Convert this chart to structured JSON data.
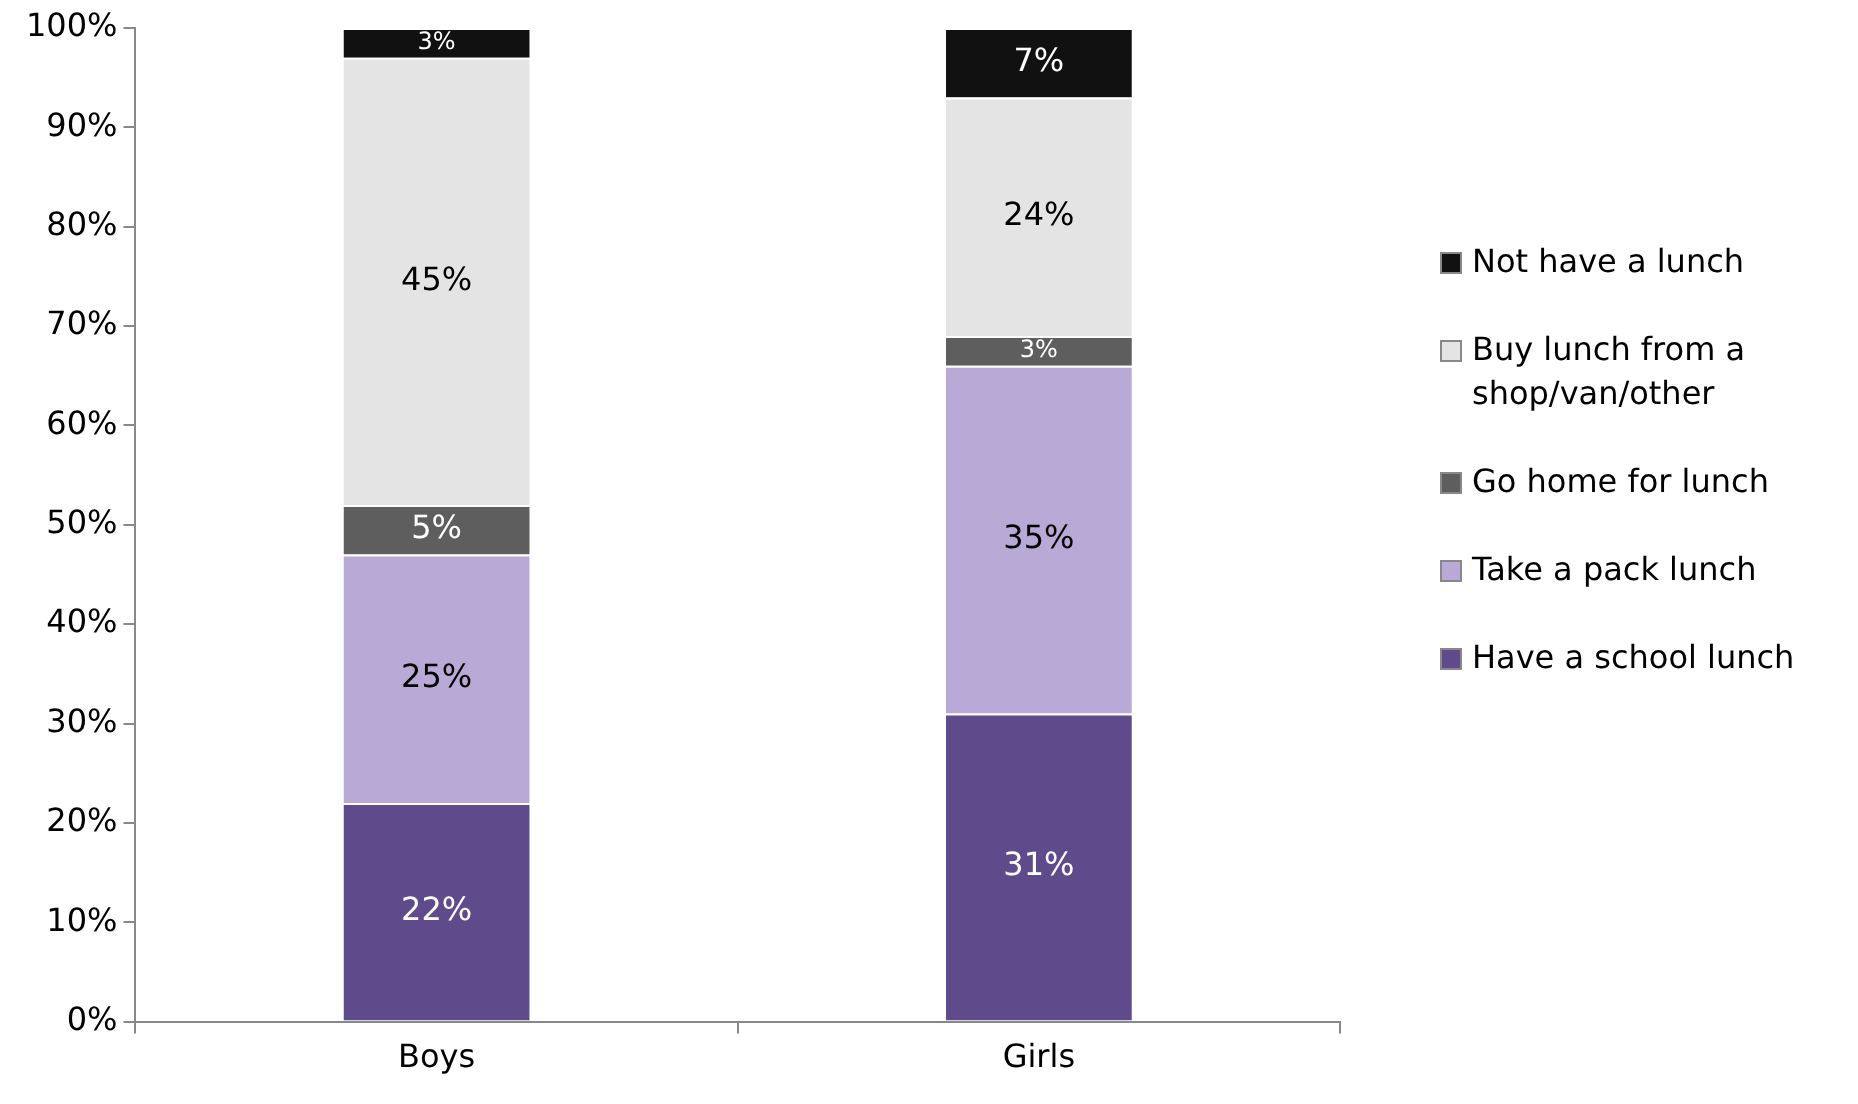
{
  "chart_data": {
    "type": "bar",
    "stacked": true,
    "categories": [
      "Boys",
      "Girls"
    ],
    "series": [
      {
        "name": "Have a school lunch",
        "color": "#5f4b8b",
        "values": [
          22,
          31
        ],
        "value_labels": [
          "22%",
          "31%"
        ]
      },
      {
        "name": "Take a pack lunch",
        "color": "#b9a9d6",
        "values": [
          25,
          35
        ],
        "value_labels": [
          "25%",
          "35%"
        ]
      },
      {
        "name": "Go home for lunch",
        "color": "#5e5e5e",
        "values": [
          5,
          3
        ],
        "value_labels": [
          "5%",
          "3%"
        ]
      },
      {
        "name": "Buy lunch from a shop/van/other",
        "color": "#e4e4e4",
        "values": [
          45,
          24
        ],
        "value_labels": [
          "45%",
          "24%"
        ]
      },
      {
        "name": "Not have a lunch",
        "color": "#111111",
        "values": [
          3,
          7
        ],
        "value_labels": [
          "3%",
          "7%"
        ]
      }
    ],
    "ylim": [
      0,
      100
    ],
    "yticks": [
      {
        "value": 0,
        "label": "0%"
      },
      {
        "value": 10,
        "label": "10%"
      },
      {
        "value": 20,
        "label": "20%"
      },
      {
        "value": 30,
        "label": "30%"
      },
      {
        "value": 40,
        "label": "40%"
      },
      {
        "value": 50,
        "label": "50%"
      },
      {
        "value": 60,
        "label": "60%"
      },
      {
        "value": 70,
        "label": "70%"
      },
      {
        "value": 80,
        "label": "80%"
      },
      {
        "value": 90,
        "label": "90%"
      },
      {
        "value": 100,
        "label": "100%"
      }
    ],
    "grid": false,
    "legend": "right"
  }
}
